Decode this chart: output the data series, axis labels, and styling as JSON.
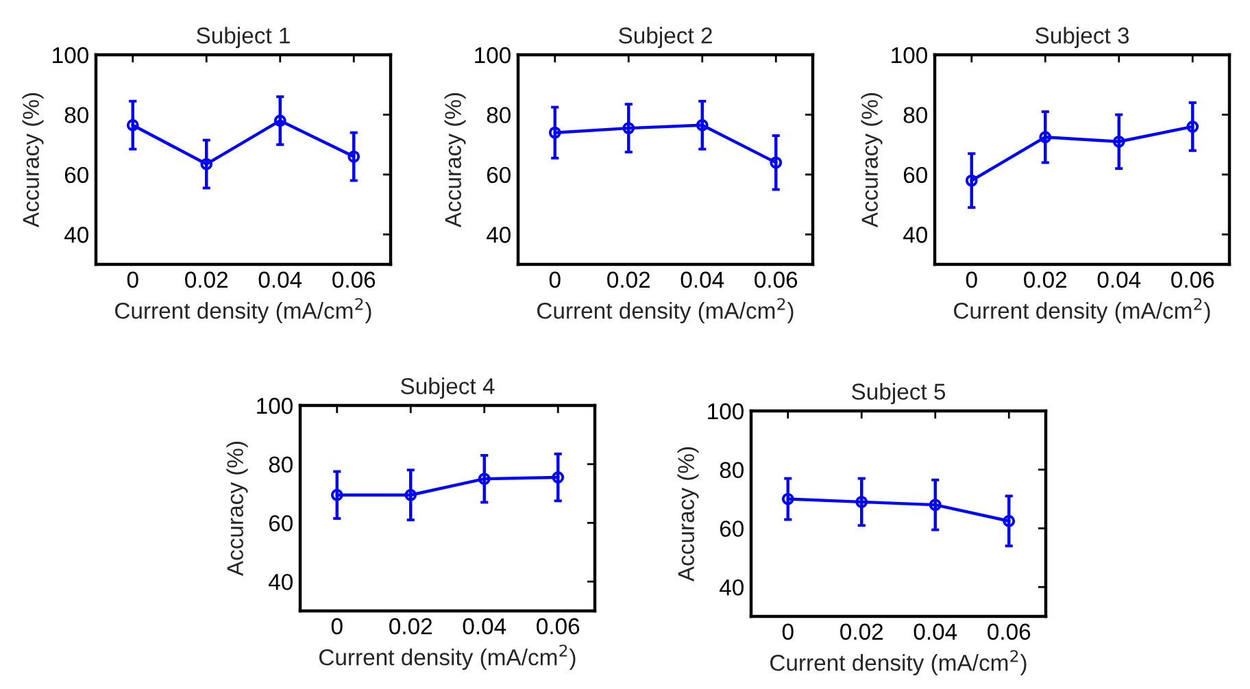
{
  "chart_data": [
    {
      "type": "line",
      "title": "Subject 1",
      "xlabel": "Current density (mA/cm$^{2}$)",
      "ylabel": "Accuracy (%)",
      "x": [
        0,
        0.02,
        0.04,
        0.06
      ],
      "xlim": [
        -0.01,
        0.07
      ],
      "xticks": [
        0,
        0.02,
        0.04,
        0.06
      ],
      "ylim": [
        30,
        100
      ],
      "yticks": [
        40,
        60,
        80,
        100
      ],
      "grid": false,
      "marker": "circle",
      "line_style": "solid",
      "series": [
        {
          "color": "#0000ff",
          "values": [
            76.5,
            63.5,
            78,
            66
          ],
          "errors": [
            8,
            8,
            8,
            8
          ]
        }
      ]
    },
    {
      "type": "line",
      "title": "Subject 2",
      "xlabel": "Current density (mA/cm$^{2}$)",
      "ylabel": "Accuracy (%)",
      "x": [
        0,
        0.02,
        0.04,
        0.06
      ],
      "xlim": [
        -0.01,
        0.07
      ],
      "xticks": [
        0,
        0.02,
        0.04,
        0.06
      ],
      "ylim": [
        30,
        100
      ],
      "yticks": [
        40,
        60,
        80,
        100
      ],
      "grid": false,
      "marker": "circle",
      "line_style": "solid",
      "series": [
        {
          "color": "#0000ff",
          "values": [
            74,
            75.5,
            76.5,
            64
          ],
          "errors": [
            8.5,
            8,
            8,
            9
          ]
        }
      ]
    },
    {
      "type": "line",
      "title": "Subject 3",
      "xlabel": "Current density (mA/cm$^{2}$)",
      "ylabel": "Accuracy (%)",
      "x": [
        0,
        0.02,
        0.04,
        0.06
      ],
      "xlim": [
        -0.01,
        0.07
      ],
      "xticks": [
        0,
        0.02,
        0.04,
        0.06
      ],
      "ylim": [
        30,
        100
      ],
      "yticks": [
        40,
        60,
        80,
        100
      ],
      "grid": false,
      "marker": "circle",
      "line_style": "solid",
      "series": [
        {
          "color": "#0000ff",
          "values": [
            58,
            72.5,
            71,
            76
          ],
          "errors": [
            9,
            8.5,
            9,
            8
          ]
        }
      ]
    },
    {
      "type": "line",
      "title": "Subject 4",
      "xlabel": "Current density (mA/cm$^{2}$)",
      "ylabel": "Accuracy (%)",
      "x": [
        0,
        0.02,
        0.04,
        0.06
      ],
      "xlim": [
        -0.01,
        0.07
      ],
      "xticks": [
        0,
        0.02,
        0.04,
        0.06
      ],
      "ylim": [
        30,
        100
      ],
      "yticks": [
        40,
        60,
        80,
        100
      ],
      "grid": false,
      "marker": "circle",
      "line_style": "solid",
      "series": [
        {
          "color": "#0000ff",
          "values": [
            69.5,
            69.5,
            75,
            75.5
          ],
          "errors": [
            8,
            8.5,
            8,
            8
          ]
        }
      ]
    },
    {
      "type": "line",
      "title": "Subject 5",
      "xlabel": "Current density (mA/cm$^{2}$)",
      "ylabel": "Accuracy (%)",
      "x": [
        0,
        0.02,
        0.04,
        0.06
      ],
      "xlim": [
        -0.01,
        0.07
      ],
      "xticks": [
        0,
        0.02,
        0.04,
        0.06
      ],
      "ylim": [
        30,
        100
      ],
      "yticks": [
        40,
        60,
        80,
        100
      ],
      "grid": false,
      "marker": "circle",
      "line_style": "solid",
      "series": [
        {
          "color": "#0000ff",
          "values": [
            70,
            69,
            68,
            62.5
          ],
          "errors": [
            7,
            8,
            8.5,
            8.5
          ]
        }
      ]
    }
  ]
}
